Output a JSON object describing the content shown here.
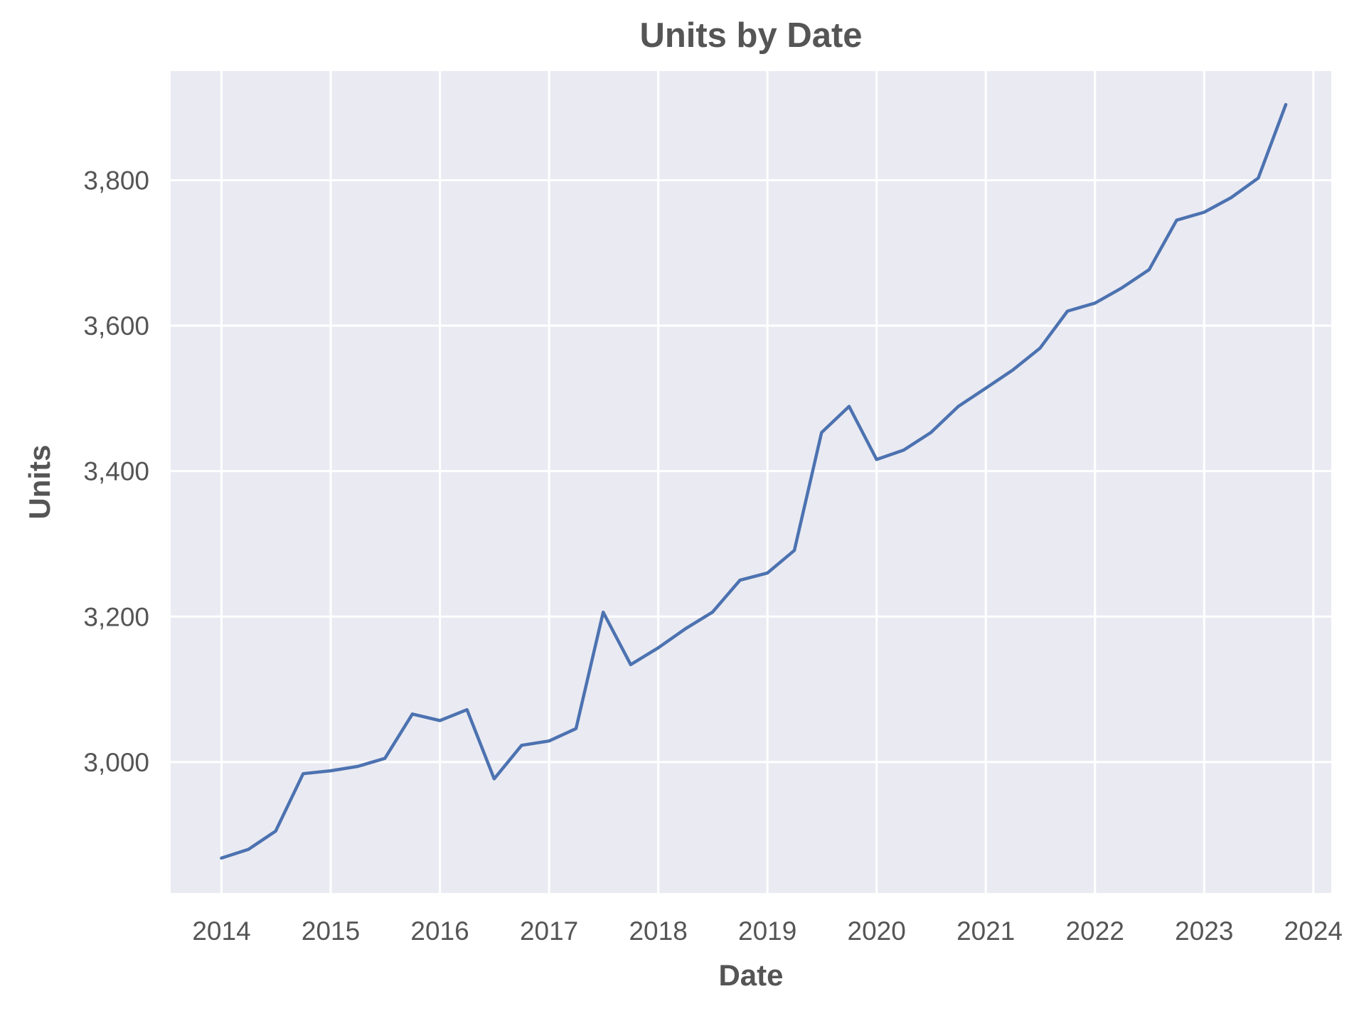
{
  "chart_data": {
    "type": "line",
    "title": "Units by Date",
    "xlabel": "Date",
    "ylabel": "Units",
    "x_ticks": [
      "2014",
      "2015",
      "2016",
      "2017",
      "2018",
      "2019",
      "2020",
      "2021",
      "2022",
      "2023",
      "2024"
    ],
    "y_ticks": [
      3000,
      3200,
      3400,
      3600,
      3800
    ],
    "y_tick_labels": [
      "3,000",
      "3,200",
      "3,400",
      "3,600",
      "3,800"
    ],
    "xlim": [
      "2013-07-15",
      "2024-03-01"
    ],
    "ylim": [
      2820,
      3950
    ],
    "grid": true,
    "line_color": "#4c72b0",
    "background_color": "#eaeaf2",
    "series": [
      {
        "x": [
          "2014-01-01",
          "2014-04-01",
          "2014-07-01",
          "2014-10-01",
          "2015-01-01",
          "2015-04-01",
          "2015-07-01",
          "2015-10-01",
          "2016-01-01",
          "2016-04-01",
          "2016-07-01",
          "2016-10-01",
          "2017-01-01",
          "2017-04-01",
          "2017-07-01",
          "2017-10-01",
          "2018-01-01",
          "2018-04-01",
          "2018-07-01",
          "2018-10-01",
          "2019-01-01",
          "2019-04-01",
          "2019-07-01",
          "2019-10-01",
          "2020-01-01",
          "2020-04-01",
          "2020-07-01",
          "2020-10-01",
          "2021-01-01",
          "2021-04-01",
          "2021-07-01",
          "2021-10-01",
          "2022-01-01",
          "2022-04-01",
          "2022-07-01",
          "2022-10-01",
          "2023-01-01",
          "2023-04-01",
          "2023-07-01",
          "2023-10-01"
        ],
        "values": [
          2868,
          2880,
          2905,
          2984,
          2988,
          2994,
          3005,
          3066,
          3057,
          3072,
          2977,
          3023,
          3029,
          3046,
          3206,
          3134,
          3157,
          3183,
          3206,
          3250,
          3260,
          3291,
          3453,
          3489,
          3416,
          3429,
          3453,
          3489,
          3514,
          3539,
          3569,
          3620,
          3631,
          3652,
          3677,
          3745,
          3756,
          3776,
          3803,
          3904
        ]
      }
    ]
  }
}
